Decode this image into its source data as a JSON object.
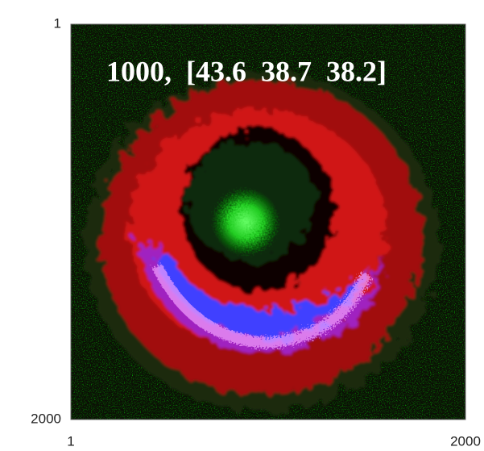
{
  "chart_data": {
    "type": "image",
    "annotation": "1000,  [43.6  38.7  38.2]",
    "xlim": [
      1,
      2000
    ],
    "xticks": [
      1,
      2000
    ],
    "ylim": [
      2000,
      1
    ],
    "yticks": [
      1,
      2000
    ]
  }
}
